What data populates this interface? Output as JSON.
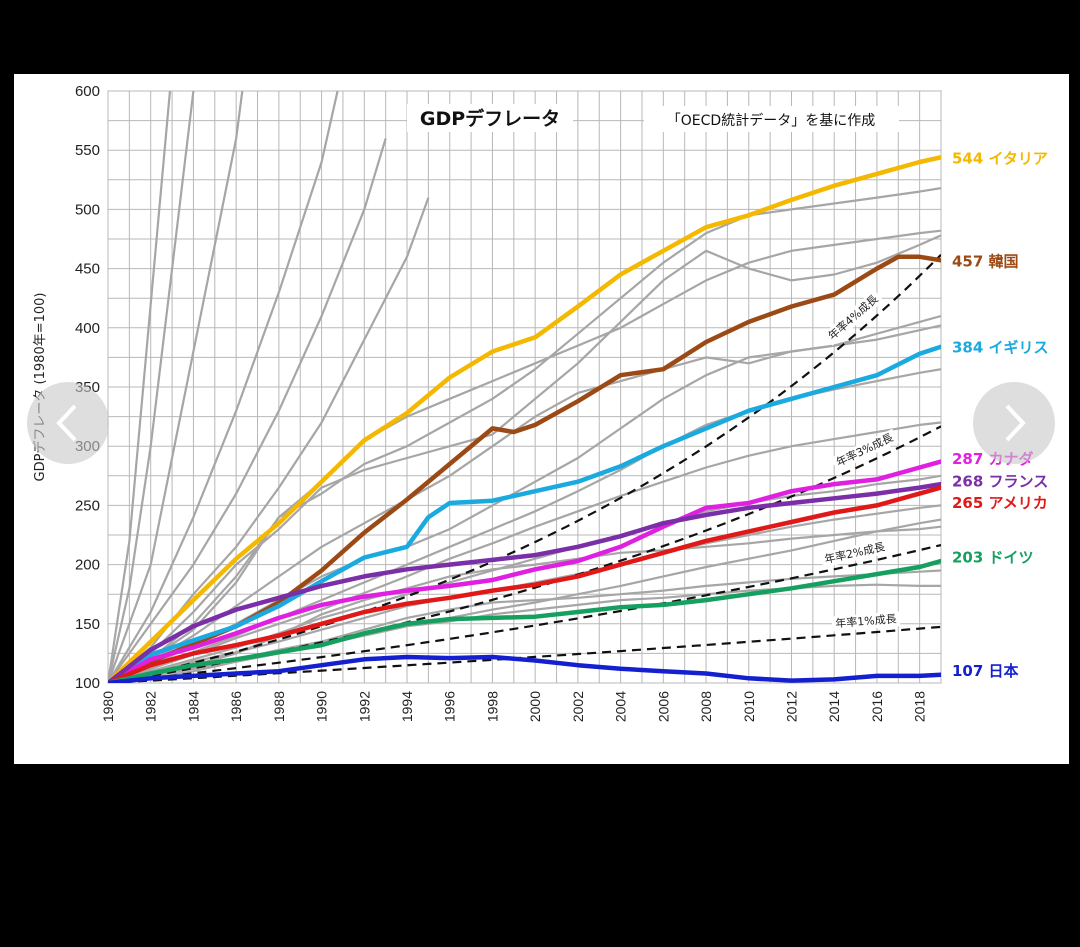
{
  "chart_data": {
    "type": "line",
    "title": "GDPデフレータ",
    "source_note": "「OECD統計データ」を基に作成",
    "ylabel": "GDPデフレータ (1980年=100)",
    "xlabel": "",
    "ylim": [
      100,
      600
    ],
    "xlim": [
      1980,
      2019
    ],
    "y_ticks": [
      100,
      150,
      200,
      250,
      300,
      350,
      400,
      450,
      500,
      550,
      600
    ],
    "x_ticks": [
      1980,
      1982,
      1984,
      1986,
      1988,
      1990,
      1992,
      1994,
      1996,
      1998,
      2000,
      2002,
      2004,
      2006,
      2008,
      2010,
      2012,
      2014,
      2016,
      2018
    ],
    "grid": true,
    "series": [
      {
        "name": "イタリア",
        "label": "544 イタリア",
        "final": 544,
        "color": "#F5B800",
        "x": [
          1980,
          1982,
          1984,
          1986,
          1988,
          1990,
          1992,
          1994,
          1996,
          1998,
          2000,
          2002,
          2004,
          2006,
          2008,
          2010,
          2012,
          2014,
          2016,
          2018,
          2019
        ],
        "y": [
          100,
          135,
          170,
          205,
          235,
          270,
          305,
          328,
          358,
          380,
          392,
          418,
          445,
          465,
          485,
          495,
          508,
          520,
          530,
          540,
          544
        ]
      },
      {
        "name": "韓国",
        "label": "457 韓国",
        "final": 457,
        "color": "#9C4A15",
        "x": [
          1980,
          1982,
          1984,
          1986,
          1988,
          1990,
          1992,
          1994,
          1996,
          1998,
          1999,
          2000,
          2002,
          2004,
          2006,
          2008,
          2010,
          2012,
          2014,
          2016,
          2017,
          2018,
          2019
        ],
        "y": [
          100,
          118,
          133,
          148,
          168,
          195,
          227,
          255,
          285,
          315,
          312,
          318,
          338,
          360,
          365,
          388,
          405,
          418,
          428,
          450,
          460,
          460,
          457
        ]
      },
      {
        "name": "イギリス",
        "label": "384 イギリス",
        "final": 384,
        "color": "#1AAAE0",
        "x": [
          1980,
          1982,
          1984,
          1986,
          1988,
          1990,
          1992,
          1994,
          1995,
          1996,
          1998,
          2000,
          2002,
          2004,
          2006,
          2008,
          2010,
          2012,
          2014,
          2016,
          2018,
          2019
        ],
        "y": [
          100,
          124,
          136,
          148,
          165,
          186,
          206,
          215,
          240,
          252,
          254,
          262,
          270,
          283,
          300,
          315,
          330,
          340,
          350,
          360,
          378,
          384
        ]
      },
      {
        "name": "カナダ",
        "label": "287 カナダ",
        "final": 287,
        "color": "#E020E0",
        "x": [
          1980,
          1982,
          1984,
          1986,
          1988,
          1990,
          1992,
          1994,
          1996,
          1998,
          2000,
          2002,
          2004,
          2006,
          2008,
          2010,
          2012,
          2014,
          2016,
          2018,
          2019
        ],
        "y": [
          100,
          120,
          130,
          142,
          155,
          166,
          173,
          178,
          182,
          187,
          196,
          203,
          215,
          232,
          248,
          252,
          262,
          268,
          272,
          282,
          287
        ]
      },
      {
        "name": "フランス",
        "label": "268 フランス",
        "final": 268,
        "color": "#7A2EA8",
        "x": [
          1980,
          1982,
          1984,
          1986,
          1988,
          1990,
          1992,
          1994,
          1996,
          1998,
          2000,
          2002,
          2004,
          2006,
          2008,
          2010,
          2012,
          2014,
          2016,
          2018,
          2019
        ],
        "y": [
          100,
          128,
          148,
          162,
          172,
          182,
          190,
          196,
          200,
          204,
          208,
          215,
          224,
          235,
          242,
          248,
          252,
          256,
          260,
          265,
          268
        ]
      },
      {
        "name": "アメリカ",
        "label": "265 アメリカ",
        "final": 265,
        "color": "#E01818",
        "x": [
          1980,
          1982,
          1984,
          1986,
          1988,
          1990,
          1992,
          1994,
          1996,
          1998,
          2000,
          2002,
          2004,
          2006,
          2008,
          2010,
          2012,
          2014,
          2016,
          2018,
          2019
        ],
        "y": [
          100,
          115,
          125,
          132,
          140,
          150,
          160,
          167,
          172,
          178,
          183,
          190,
          200,
          210,
          220,
          228,
          236,
          244,
          250,
          260,
          265
        ]
      },
      {
        "name": "ドイツ",
        "label": "203 ドイツ",
        "final": 203,
        "color": "#16A060",
        "x": [
          1980,
          1982,
          1984,
          1986,
          1988,
          1990,
          1992,
          1994,
          1996,
          1998,
          2000,
          2002,
          2004,
          2006,
          2008,
          2010,
          2012,
          2014,
          2016,
          2018,
          2019
        ],
        "y": [
          100,
          108,
          115,
          120,
          126,
          132,
          142,
          150,
          154,
          155,
          156,
          160,
          164,
          166,
          170,
          175,
          180,
          186,
          192,
          198,
          203
        ]
      },
      {
        "name": "日本",
        "label": "107 日本",
        "final": 107,
        "color": "#1420D0",
        "x": [
          1980,
          1982,
          1984,
          1986,
          1988,
          1990,
          1992,
          1994,
          1996,
          1998,
          2000,
          2002,
          2004,
          2006,
          2008,
          2010,
          2012,
          2014,
          2016,
          2018,
          2019
        ],
        "y": [
          100,
          104,
          106,
          108,
          110,
          115,
          120,
          122,
          121,
          122,
          119,
          115,
          112,
          110,
          108,
          104,
          102,
          103,
          106,
          106,
          107
        ]
      }
    ],
    "growth_lines": [
      {
        "label": "年率1%成長",
        "rate": 0.01
      },
      {
        "label": "年率2%成長",
        "rate": 0.02
      },
      {
        "label": "年率3%成長",
        "rate": 0.03
      },
      {
        "label": "年率4%成長",
        "rate": 0.04
      }
    ],
    "background_series": [
      {
        "x": [
          1980,
          1982,
          1984,
          1986,
          1988,
          1990,
          1992,
          1994,
          1996,
          1998,
          2000,
          2002,
          2004,
          2006,
          2008,
          2010,
          2012,
          2014,
          2016,
          2018,
          2019
        ],
        "y": [
          100,
          120,
          145,
          185,
          240,
          260,
          285,
          300,
          320,
          340,
          365,
          395,
          425,
          455,
          480,
          495,
          500,
          505,
          510,
          515,
          518
        ]
      },
      {
        "x": [
          1980,
          1982,
          1984,
          1986,
          1988,
          1990,
          1992,
          1994,
          1996,
          1998,
          2000,
          2002,
          2004,
          2006,
          2008,
          2010,
          2012,
          2014,
          2016,
          2018,
          2019
        ],
        "y": [
          100,
          125,
          160,
          200,
          230,
          265,
          280,
          290,
          300,
          310,
          340,
          370,
          405,
          440,
          465,
          450,
          440,
          445,
          455,
          470,
          478
        ]
      },
      {
        "x": [
          1980,
          1982,
          1984,
          1986,
          1988,
          1990,
          1992,
          1994,
          1996,
          1998,
          2000,
          2002,
          2004,
          2006,
          2008,
          2010,
          2012,
          2014,
          2016,
          2018,
          2019
        ],
        "y": [
          100,
          118,
          140,
          165,
          190,
          215,
          235,
          255,
          275,
          300,
          325,
          345,
          355,
          365,
          375,
          370,
          380,
          385,
          395,
          405,
          410
        ]
      },
      {
        "x": [
          1980,
          1982,
          1984,
          1986,
          1988,
          1990,
          1992,
          1994,
          1996,
          1998,
          2000,
          2002,
          2004,
          2006,
          2008,
          2010,
          2012,
          2014,
          2016,
          2018,
          2019
        ],
        "y": [
          100,
          115,
          132,
          150,
          170,
          190,
          205,
          215,
          230,
          250,
          270,
          290,
          315,
          340,
          360,
          375,
          380,
          385,
          390,
          398,
          402
        ]
      },
      {
        "x": [
          1980,
          1982,
          1984,
          1986,
          1988,
          1990,
          1992,
          1994,
          1996,
          1998,
          2000,
          2002,
          2004,
          2006,
          2008,
          2010,
          2012,
          2014,
          2016,
          2018,
          2019
        ],
        "y": [
          100,
          112,
          126,
          140,
          155,
          170,
          185,
          200,
          215,
          230,
          245,
          262,
          280,
          300,
          318,
          330,
          340,
          348,
          355,
          362,
          365
        ]
      },
      {
        "x": [
          1980,
          1982,
          1984,
          1986,
          1988,
          1990,
          1992,
          1994,
          1996,
          1998,
          2000,
          2002,
          2004,
          2006,
          2008,
          2010,
          2012,
          2014,
          2016,
          2018,
          2019
        ],
        "y": [
          100,
          112,
          124,
          138,
          150,
          162,
          176,
          190,
          205,
          218,
          232,
          245,
          258,
          270,
          282,
          292,
          300,
          306,
          312,
          318,
          320
        ]
      },
      {
        "x": [
          1980,
          1982,
          1984,
          1986,
          1988,
          1990,
          1992,
          1994,
          1996,
          1998,
          2000,
          2002,
          2004,
          2006,
          2008,
          2010,
          2012,
          2014,
          2016,
          2018,
          2019
        ],
        "y": [
          100,
          110,
          120,
          130,
          142,
          155,
          165,
          175,
          185,
          195,
          205,
          215,
          225,
          235,
          245,
          252,
          258,
          262,
          268,
          272,
          275
        ]
      },
      {
        "x": [
          1980,
          1982,
          1984,
          1986,
          1988,
          1990,
          1992,
          1994,
          1996,
          1998,
          2000,
          2002,
          2004,
          2006,
          2008,
          2010,
          2012,
          2014,
          2016,
          2018,
          2019
        ],
        "y": [
          100,
          108,
          118,
          126,
          135,
          145,
          155,
          165,
          172,
          178,
          185,
          192,
          200,
          210,
          218,
          225,
          232,
          238,
          243,
          248,
          250
        ]
      },
      {
        "x": [
          1980,
          1982,
          1984,
          1986,
          1988,
          1990,
          1992,
          1994,
          1996,
          1998,
          2000,
          2002,
          2004,
          2006,
          2008,
          2010,
          2012,
          2014,
          2016,
          2018,
          2019
        ],
        "y": [
          100,
          106,
          112,
          118,
          125,
          132,
          140,
          148,
          155,
          162,
          168,
          175,
          182,
          190,
          198,
          205,
          212,
          220,
          228,
          235,
          238
        ]
      },
      {
        "x": [
          1980,
          1982,
          1984,
          1986,
          1988,
          1990,
          1992,
          1994,
          1996,
          1998,
          2000,
          2002,
          2004,
          2006,
          2008,
          2010,
          2012,
          2014,
          2016,
          2018,
          2019
        ],
        "y": [
          100,
          108,
          115,
          125,
          140,
          158,
          170,
          180,
          190,
          196,
          200,
          205,
          210,
          212,
          215,
          218,
          222,
          225,
          228,
          230,
          232
        ]
      },
      {
        "x": [
          1980,
          1982,
          1984,
          1986,
          1988,
          1990,
          1992,
          1994,
          1996,
          1998,
          2000,
          2002,
          2004,
          2006,
          2008,
          2010,
          2012,
          2014,
          2016,
          2018,
          2019
        ],
        "y": [
          100,
          106,
          113,
          120,
          128,
          135,
          145,
          155,
          162,
          168,
          170,
          172,
          175,
          178,
          182,
          185,
          188,
          190,
          192,
          194,
          195
        ]
      },
      {
        "x": [
          1980,
          1982,
          1984,
          1986,
          1988,
          1990,
          1992,
          1994,
          1996,
          1998,
          2000,
          2002,
          2004,
          2006,
          2008,
          2010,
          2012,
          2014,
          2016,
          2018,
          2019
        ],
        "y": [
          100,
          104,
          110,
          118,
          125,
          135,
          140,
          148,
          152,
          158,
          162,
          166,
          170,
          172,
          175,
          178,
          180,
          182,
          183,
          182,
          182
        ]
      },
      {
        "x": [
          1980,
          1982,
          1984,
          1986,
          1988,
          1990,
          1992,
          1994,
          1996,
          1998,
          2000,
          2002,
          2004,
          2006,
          2008,
          2010,
          2012,
          2014,
          2016,
          2018,
          2019
        ],
        "y": [
          100,
          120,
          150,
          190,
          240,
          270,
          305,
          325,
          340,
          355,
          370,
          385,
          400,
          420,
          440,
          455,
          465,
          470,
          475,
          480,
          482
        ]
      },
      {
        "x": [
          1980,
          1981,
          1982,
          1983,
          1984,
          1985
        ],
        "y": [
          100,
          180,
          300,
          450,
          600,
          800
        ]
      },
      {
        "x": [
          1980,
          1981,
          1982,
          1983,
          1984
        ],
        "y": [
          100,
          220,
          420,
          620,
          800
        ]
      },
      {
        "x": [
          1980,
          1982,
          1984,
          1986,
          1987
        ],
        "y": [
          100,
          200,
          380,
          560,
          700
        ]
      },
      {
        "x": [
          1980,
          1982,
          1984,
          1986,
          1988,
          1990,
          1991
        ],
        "y": [
          100,
          160,
          240,
          330,
          430,
          540,
          620
        ]
      },
      {
        "x": [
          1980,
          1982,
          1984,
          1986,
          1988,
          1990,
          1992,
          1993
        ],
        "y": [
          100,
          150,
          200,
          260,
          330,
          410,
          500,
          560
        ]
      },
      {
        "x": [
          1980,
          1982,
          1984,
          1986,
          1988,
          1990,
          1992,
          1994,
          1995
        ],
        "y": [
          100,
          130,
          175,
          215,
          265,
          320,
          390,
          460,
          510
        ]
      }
    ]
  },
  "navigation": {
    "prev_icon": "chevron-left-icon",
    "next_icon": "chevron-right-icon"
  }
}
